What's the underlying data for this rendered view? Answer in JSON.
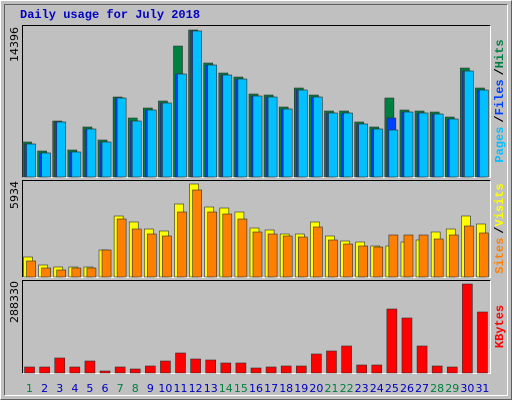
{
  "chart_data": [
    {
      "type": "bar",
      "title": "Daily usage for July 2018",
      "title_color": "#0000c0",
      "ylim": [
        0,
        14396
      ],
      "yticks": [
        14396
      ],
      "legend_separator": "/",
      "legend_separator_color": "#000000",
      "series": [
        {
          "name": "Hits",
          "color": "#008040",
          "values": [
            3427,
            2545,
            5482,
            2643,
            4895,
            3622,
            7832,
            5776,
            6755,
            7440,
            12825,
            14396,
            11161,
            10182,
            9790,
            8126,
            8028,
            6853,
            8713,
            8028,
            6461,
            6461,
            5385,
            4895,
            7734,
            6559,
            6461,
            6363,
            5874,
            10671,
            8713
          ]
        },
        {
          "name": "Files",
          "color": "#0040ff",
          "values": [
            3231,
            2349,
            5384,
            2447,
            4699,
            3426,
            7734,
            5482,
            6559,
            7244,
            10084,
            14298,
            10965,
            9986,
            9594,
            7930,
            7832,
            6657,
            8517,
            7832,
            6265,
            6265,
            5189,
            4699,
            5776,
            6363,
            6265,
            6167,
            5678,
            10378,
            8517
          ]
        },
        {
          "name": "Pages",
          "color": "#00c0ff",
          "values": [
            3231,
            2349,
            5384,
            2447,
            4699,
            3426,
            7734,
            5482,
            6559,
            7244,
            10084,
            14298,
            10965,
            9986,
            9594,
            7930,
            7832,
            6657,
            8517,
            7832,
            6265,
            6265,
            5189,
            4699,
            4601,
            6363,
            6265,
            6167,
            5678,
            10378,
            8517
          ]
        }
      ]
    },
    {
      "type": "bar",
      "ylim": [
        0,
        5934
      ],
      "yticks": [
        5934
      ],
      "legend_separator": "/",
      "legend_separator_color": "#000000",
      "series": [
        {
          "name": "Visits",
          "color": "#ffff00",
          "values": [
            1276,
            766,
            638,
            638,
            638,
            1723,
            3892,
            3509,
            3062,
            2935,
            4657,
            5934,
            4466,
            4402,
            4147,
            3126,
            2999,
            2743,
            2743,
            3509,
            2616,
            2297,
            2233,
            1978,
            1978,
            2233,
            2361,
            2871,
            3062,
            3892,
            3382
          ]
        },
        {
          "name": "Sites",
          "color": "#ff8000",
          "values": [
            1021,
            574,
            447,
            574,
            574,
            1723,
            3700,
            3062,
            2743,
            2616,
            4147,
            5551,
            4147,
            4019,
            3700,
            2871,
            2743,
            2616,
            2552,
            3190,
            2361,
            2105,
            1978,
            1914,
            2680,
            2680,
            2680,
            2424,
            2680,
            3254,
            2807
          ]
        }
      ]
    },
    {
      "type": "bar",
      "ylim": [
        0,
        288330
      ],
      "yticks": [
        288330
      ],
      "series": [
        {
          "name": "KBytes",
          "color": "#ff0000",
          "values": [
            19440,
            19440,
            48600,
            19440,
            38880,
            6480,
            19440,
            12960,
            22680,
            38880,
            64800,
            45360,
            42120,
            32400,
            32400,
            16200,
            19440,
            22680,
            22680,
            61560,
            71280,
            87480,
            25920,
            25920,
            207360,
            178200,
            87480,
            22680,
            19440,
            288330,
            197640
          ]
        }
      ],
      "categories": [
        "1",
        "2",
        "3",
        "4",
        "5",
        "6",
        "7",
        "8",
        "9",
        "10",
        "11",
        "12",
        "13",
        "14",
        "15",
        "16",
        "17",
        "18",
        "19",
        "20",
        "21",
        "22",
        "23",
        "24",
        "25",
        "26",
        "27",
        "28",
        "29",
        "30",
        "31"
      ],
      "category_colors": [
        "#008040",
        "#0000c0",
        "#0000c0",
        "#0000c0",
        "#0000c0",
        "#0000c0",
        "#008040",
        "#008040",
        "#0000c0",
        "#0000c0",
        "#0000c0",
        "#0000c0",
        "#0000c0",
        "#008040",
        "#008040",
        "#0000c0",
        "#0000c0",
        "#0000c0",
        "#0000c0",
        "#0000c0",
        "#008040",
        "#008040",
        "#0000c0",
        "#0000c0",
        "#0000c0",
        "#0000c0",
        "#0000c0",
        "#008040",
        "#008040",
        "#0000c0",
        "#0000c0"
      ]
    }
  ]
}
